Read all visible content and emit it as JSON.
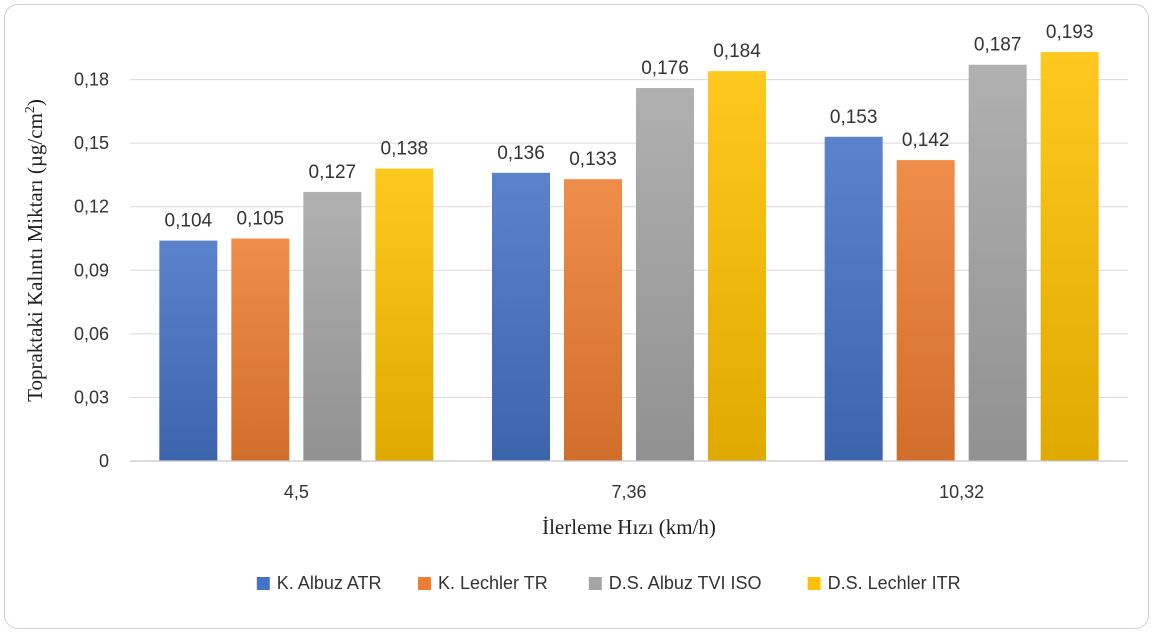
{
  "chart_data": {
    "type": "bar",
    "title": "",
    "xlabel": "İlerleme Hızı (km/h)",
    "ylabel": "Topraktaki Kalıntı Miktarı (µg/cm",
    "ylabel_sup": "2",
    "ylabel_end": ")",
    "categories": [
      "4,5",
      "7,36",
      "10,32"
    ],
    "ylim": [
      0,
      0.21
    ],
    "yticks": [
      0,
      0.03,
      0.06,
      0.09,
      0.12,
      0.15,
      0.18
    ],
    "ytick_labels": [
      "0",
      "0,03",
      "0,06",
      "0,09",
      "0,12",
      "0,15",
      "0,18"
    ],
    "grid": true,
    "legend_position": "bottom",
    "series": [
      {
        "name": "K. Albuz ATR",
        "values": [
          0.104,
          0.136,
          0.153
        ],
        "labels": [
          "0,104",
          "0,136",
          "0,153"
        ],
        "color": "#4472c4"
      },
      {
        "name": "K. Lechler TR",
        "values": [
          0.105,
          0.133,
          0.142
        ],
        "labels": [
          "0,105",
          "0,133",
          "0,142"
        ],
        "color": "#ed7d31"
      },
      {
        "name": "D.S. Albuz TVI ISO",
        "values": [
          0.127,
          0.176,
          0.187
        ],
        "labels": [
          "0,127",
          "0,176",
          "0,187"
        ],
        "color": "#a5a5a5"
      },
      {
        "name": "D.S. Lechler ITR",
        "values": [
          0.138,
          0.184,
          0.193
        ],
        "labels": [
          "0,138",
          "0,184",
          "0,193"
        ],
        "color": "#ffc000"
      }
    ]
  }
}
